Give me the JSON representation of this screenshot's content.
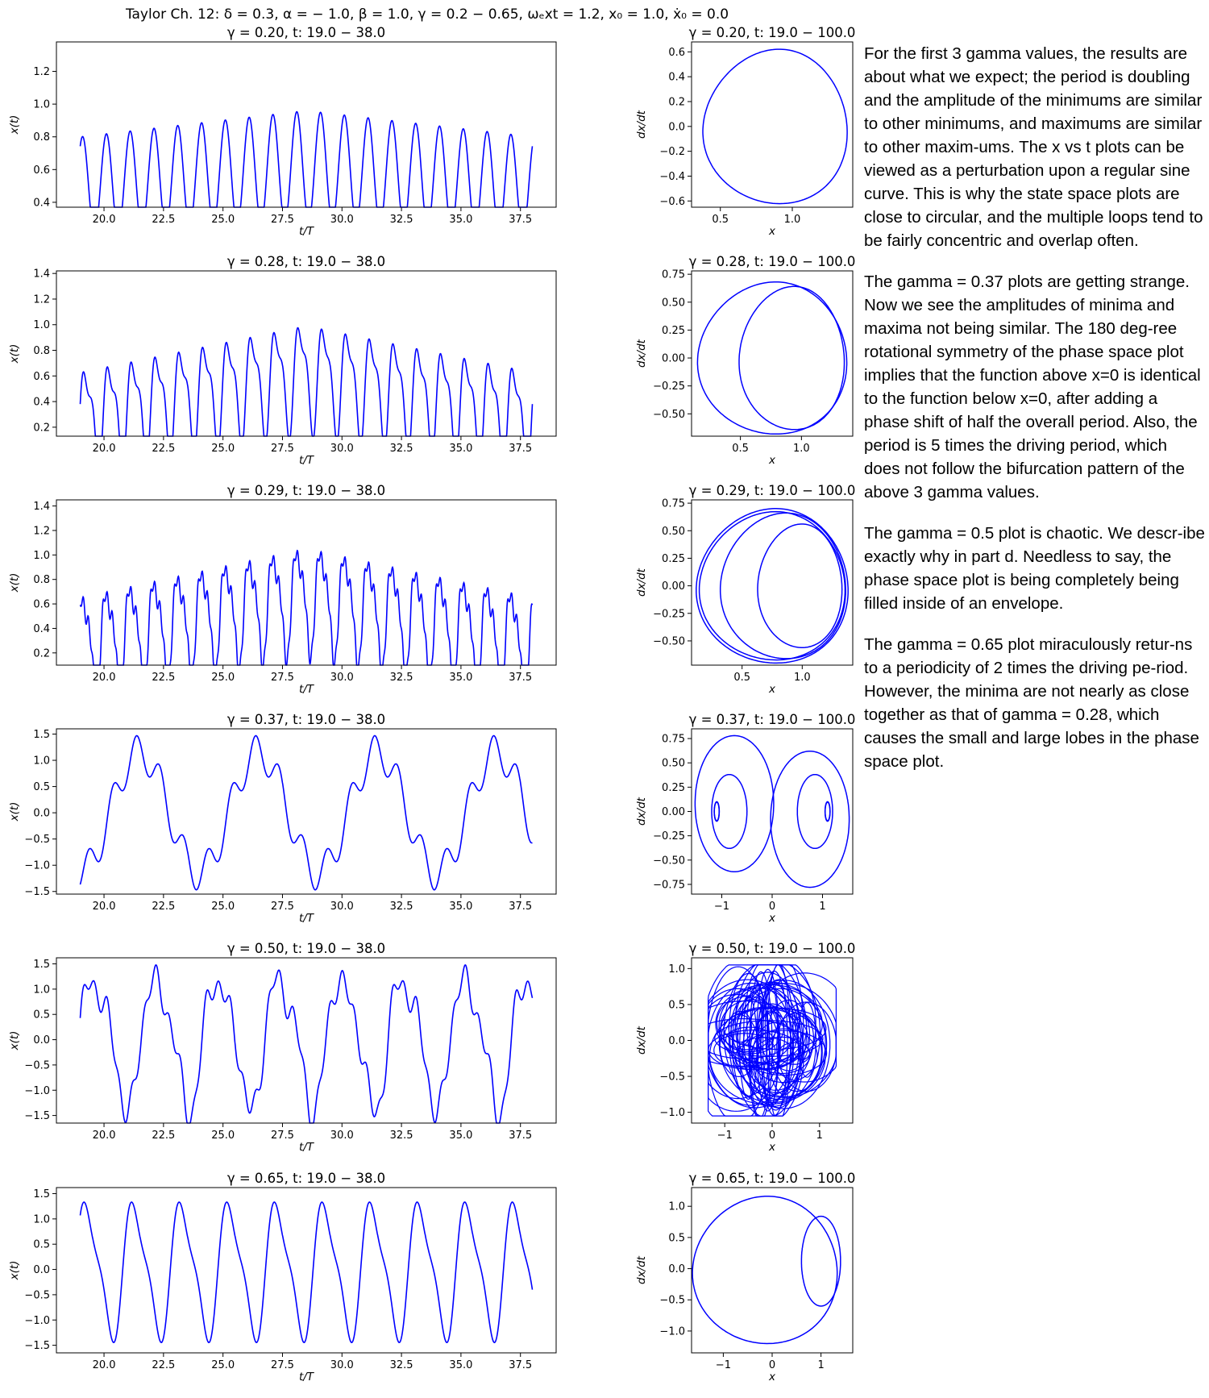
{
  "figure": {
    "suptitle": "Taylor Ch. 12:   δ = 0.3,  α = − 1.0,  β = 1.0,  γ = 0.2 − 0.65,  ωₑxt = 1.2,   x₀ = 1.0,  ẋ₀ = 0.0"
  },
  "colors": {
    "line": "#0000ff",
    "axes": "#000000",
    "background": "#ffffff"
  },
  "chart_data": [
    {
      "type": "line",
      "gamma": 0.2,
      "title": "γ = 0.20, t: 19.0 − 38.0",
      "xlabel": "t/T",
      "ylabel": "x(t)",
      "xlim": [
        18.0,
        39.0
      ],
      "ylim": [
        0.37,
        1.38
      ],
      "xticks": [
        20.0,
        22.5,
        25.0,
        27.5,
        30.0,
        32.5,
        35.0,
        37.5
      ],
      "xtick_labels": [
        "20.0",
        "22.5",
        "25.0",
        "27.5",
        "30.0",
        "32.5",
        "35.0",
        "37.5"
      ],
      "yticks": [
        0.4,
        0.6,
        0.8,
        1.0,
        1.2
      ],
      "ytick_labels": [
        "0.4",
        "0.6",
        "0.8",
        "1.0",
        "1.2"
      ],
      "series": [
        {
          "x_start": 19.0,
          "x_end": 38.0,
          "wave_period": 1.0,
          "phase": 0.15,
          "base": [
            0.5,
            0.62,
            0.5
          ],
          "main_amplitude": [
            0.3,
            0.34,
            0.3
          ],
          "harmonic": 0.0,
          "extra": 0.0
        }
      ]
    },
    {
      "type": "line",
      "gamma": 0.28,
      "title": "γ = 0.28, t: 19.0 − 38.0",
      "xlabel": "t/T",
      "ylabel": "x(t)",
      "xlim": [
        18.0,
        39.0
      ],
      "ylim": [
        0.13,
        1.42
      ],
      "xticks": [
        20.0,
        22.5,
        25.0,
        27.5,
        30.0,
        32.5,
        35.0,
        37.5
      ],
      "xtick_labels": [
        "20.0",
        "22.5",
        "25.0",
        "27.5",
        "30.0",
        "32.5",
        "35.0",
        "37.5"
      ],
      "yticks": [
        0.2,
        0.4,
        0.6,
        0.8,
        1.0,
        1.2,
        1.4
      ],
      "ytick_labels": [
        "0.2",
        "0.4",
        "0.6",
        "0.8",
        "1.0",
        "1.2",
        "1.4"
      ],
      "series": [
        {
          "x_start": 19.0,
          "x_end": 38.0,
          "wave_period": 1.0,
          "phase": 0.0,
          "base": [
            0.28,
            0.62,
            0.28
          ],
          "main_amplitude": [
            0.35,
            0.38,
            0.35
          ],
          "harmonic": 0.14,
          "extra": 0.0
        }
      ]
    },
    {
      "type": "line",
      "gamma": 0.29,
      "title": "γ = 0.29, t: 19.0 − 38.0",
      "xlabel": "t/T",
      "ylabel": "x(t)",
      "xlim": [
        18.0,
        39.0
      ],
      "ylim": [
        0.1,
        1.45
      ],
      "xticks": [
        20.0,
        22.5,
        25.0,
        27.5,
        30.0,
        32.5,
        35.0,
        37.5
      ],
      "xtick_labels": [
        "20.0",
        "22.5",
        "25.0",
        "27.5",
        "30.0",
        "32.5",
        "35.0",
        "37.5"
      ],
      "yticks": [
        0.2,
        0.4,
        0.6,
        0.8,
        1.0,
        1.2,
        1.4
      ],
      "ytick_labels": [
        "0.2",
        "0.4",
        "0.6",
        "0.8",
        "1.0",
        "1.2",
        "1.4"
      ],
      "series": [
        {
          "x_start": 19.0,
          "x_end": 38.0,
          "wave_period": 1.0,
          "phase": 0.1,
          "base": [
            0.28,
            0.66,
            0.28
          ],
          "main_amplitude": [
            0.38,
            0.4,
            0.38
          ],
          "harmonic": 0.12,
          "extra": 0.06
        }
      ]
    },
    {
      "type": "line",
      "gamma": 0.37,
      "title": "γ = 0.37, t: 19.0 − 38.0",
      "xlabel": "t/T",
      "ylabel": "x(t)",
      "xlim": [
        18.0,
        39.0
      ],
      "ylim": [
        -1.55,
        1.6
      ],
      "xticks": [
        20.0,
        22.5,
        25.0,
        27.5,
        30.0,
        32.5,
        35.0,
        37.5
      ],
      "xtick_labels": [
        "20.0",
        "22.5",
        "25.0",
        "27.5",
        "30.0",
        "32.5",
        "35.0",
        "37.5"
      ],
      "yticks": [
        -1.5,
        -1.0,
        -0.5,
        0.0,
        0.5,
        1.0,
        1.5
      ],
      "ytick_labels": [
        "−1.5",
        "−1.0",
        "−0.5",
        "0.0",
        "0.5",
        "1.0",
        "1.5"
      ],
      "series": [
        {
          "x_start": 19.0,
          "x_end": 38.0,
          "wave_period": 5.0,
          "phase": 0.95,
          "base": [
            0.0,
            0.0,
            0.0
          ],
          "main_amplitude": [
            1.15,
            1.15,
            1.15
          ],
          "harmonic": 0.0,
          "extra": 0.3
        }
      ]
    },
    {
      "type": "line",
      "gamma": 0.5,
      "title": "γ = 0.50, t: 19.0 − 38.0",
      "xlabel": "t/T",
      "ylabel": "x(t)",
      "xlim": [
        18.0,
        39.0
      ],
      "ylim": [
        -1.65,
        1.62
      ],
      "xticks": [
        20.0,
        22.5,
        25.0,
        27.5,
        30.0,
        32.5,
        35.0,
        37.5
      ],
      "xtick_labels": [
        "20.0",
        "22.5",
        "25.0",
        "27.5",
        "30.0",
        "32.5",
        "35.0",
        "37.5"
      ],
      "yticks": [
        -1.5,
        -1.0,
        -0.5,
        0.0,
        0.5,
        1.0,
        1.5
      ],
      "ytick_labels": [
        "−1.5",
        "−1.0",
        "−0.5",
        "0.0",
        "0.5",
        "1.0",
        "1.5"
      ],
      "series": [
        {
          "x_start": 19.0,
          "x_end": 38.0,
          "wave_period": 2.6,
          "phase": 0.7,
          "base": [
            0.0,
            0.0,
            0.0
          ],
          "main_amplitude": [
            1.25,
            1.25,
            1.25
          ],
          "harmonic": 0.25,
          "extra": 0.2
        }
      ]
    },
    {
      "type": "line",
      "gamma": 0.65,
      "title": "γ = 0.65, t: 19.0 − 38.0",
      "xlabel": "t/T",
      "ylabel": "x(t)",
      "xlim": [
        18.0,
        39.0
      ],
      "ylim": [
        -1.65,
        1.62
      ],
      "xticks": [
        20.0,
        22.5,
        25.0,
        27.5,
        30.0,
        32.5,
        35.0,
        37.5
      ],
      "xtick_labels": [
        "20.0",
        "22.5",
        "25.0",
        "27.5",
        "30.0",
        "32.5",
        "35.0",
        "37.5"
      ],
      "yticks": [
        -1.5,
        -1.0,
        -0.5,
        0.0,
        0.5,
        1.0,
        1.5
      ],
      "ytick_labels": [
        "−1.5",
        "−1.0",
        "−0.5",
        "0.0",
        "0.5",
        "1.0",
        "1.5"
      ],
      "series": [
        {
          "x_start": 19.0,
          "x_end": 38.0,
          "wave_period": 2.0,
          "phase": 0.6,
          "base": [
            0.0,
            0.0,
            0.0
          ],
          "main_amplitude": [
            1.25,
            1.25,
            1.25
          ],
          "harmonic": 0.3,
          "extra": 0.0
        }
      ]
    },
    {
      "type": "line",
      "gamma": 0.2,
      "title": "γ = 0.20, t: 19.0 − 100.0",
      "xlabel": "x",
      "ylabel": "dx/dt",
      "xlim": [
        0.3,
        1.42
      ],
      "ylim": [
        -0.65,
        0.68
      ],
      "xticks": [
        0.5,
        1.0
      ],
      "xtick_labels": [
        "0.5",
        "1.0"
      ],
      "yticks": [
        -0.6,
        -0.4,
        -0.2,
        0.0,
        0.2,
        0.4,
        0.6
      ],
      "ytick_labels": [
        "−0.6",
        "−0.4",
        "−0.2",
        "0.0",
        "0.2",
        "0.4",
        "0.6"
      ],
      "loops": [
        {
          "cx": 0.88,
          "cy": 0.0,
          "rx": 0.5,
          "ry": 0.62,
          "skew": 0.25,
          "turns": 1
        }
      ]
    },
    {
      "type": "line",
      "gamma": 0.28,
      "title": "γ = 0.28, t: 19.0 − 100.0",
      "xlabel": "x",
      "ylabel": "dx/dt",
      "xlim": [
        0.1,
        1.42
      ],
      "ylim": [
        -0.7,
        0.78
      ],
      "xticks": [
        0.5,
        1.0
      ],
      "xtick_labels": [
        "0.5",
        "1.0"
      ],
      "yticks": [
        -0.5,
        -0.25,
        0.0,
        0.25,
        0.5,
        0.75
      ],
      "ytick_labels": [
        "−0.50",
        "−0.25",
        "0.00",
        "0.25",
        "0.50",
        "0.75"
      ],
      "loops": [
        {
          "cx": 0.76,
          "cy": 0.0,
          "rx": 0.61,
          "ry": 0.68,
          "skew": 0.2,
          "turns": 1
        },
        {
          "cx": 0.92,
          "cy": 0.0,
          "rx": 0.43,
          "ry": 0.64,
          "skew": 0.2,
          "turns": 1
        }
      ]
    },
    {
      "type": "line",
      "gamma": 0.29,
      "title": "γ = 0.29, t: 19.0 − 100.0",
      "xlabel": "x",
      "ylabel": "dx/dt",
      "xlim": [
        0.08,
        1.42
      ],
      "ylim": [
        -0.72,
        0.78
      ],
      "xticks": [
        0.5,
        1.0
      ],
      "xtick_labels": [
        "0.5",
        "1.0"
      ],
      "yticks": [
        -0.5,
        -0.25,
        0.0,
        0.25,
        0.5,
        0.75
      ],
      "ytick_labels": [
        "−0.50",
        "−0.25",
        "0.00",
        "0.25",
        "0.50",
        "0.75"
      ],
      "loops": [
        {
          "cx": 0.75,
          "cy": 0.0,
          "rx": 0.63,
          "ry": 0.7,
          "skew": 0.2,
          "turns": 2
        },
        {
          "cx": 0.84,
          "cy": 0.0,
          "rx": 0.52,
          "ry": 0.66,
          "skew": 0.2,
          "turns": 1
        },
        {
          "cx": 0.98,
          "cy": 0.0,
          "rx": 0.35,
          "ry": 0.56,
          "skew": 0.2,
          "turns": 1
        }
      ]
    },
    {
      "type": "line",
      "gamma": 0.37,
      "title": "γ = 0.37, t: 19.0 − 100.0",
      "xlabel": "x",
      "ylabel": "dx/dt",
      "xlim": [
        -1.6,
        1.6
      ],
      "ylim": [
        -0.85,
        0.85
      ],
      "xticks": [
        -1.0,
        0.0,
        1.0
      ],
      "xtick_labels": [
        "−1",
        "0",
        "1"
      ],
      "yticks": [
        -0.75,
        -0.5,
        -0.25,
        0.0,
        0.25,
        0.5,
        0.75
      ],
      "ytick_labels": [
        "−0.75",
        "−0.50",
        "−0.25",
        "0.00",
        "0.25",
        "0.50",
        "0.75"
      ],
      "loops": [
        {
          "cx": -0.75,
          "cy": 0.08,
          "rx": 0.78,
          "ry": 0.7,
          "skew": 0.0,
          "turns": 1
        },
        {
          "cx": 0.75,
          "cy": -0.08,
          "rx": 0.78,
          "ry": 0.7,
          "skew": 0.0,
          "turns": 1
        },
        {
          "cx": -0.85,
          "cy": 0.0,
          "rx": 0.35,
          "ry": 0.38,
          "skew": 0.0,
          "turns": 1
        },
        {
          "cx": 0.85,
          "cy": 0.0,
          "rx": 0.35,
          "ry": 0.38,
          "skew": 0.0,
          "turns": 1
        },
        {
          "cx": -1.1,
          "cy": 0.0,
          "rx": 0.05,
          "ry": 0.1,
          "skew": 0.0,
          "turns": 2
        },
        {
          "cx": 1.1,
          "cy": 0.0,
          "rx": 0.05,
          "ry": 0.1,
          "skew": 0.0,
          "turns": 2
        }
      ]
    },
    {
      "type": "line",
      "gamma": 0.5,
      "title": "γ = 0.50, t: 19.0 − 100.0",
      "xlabel": "x",
      "ylabel": "dx/dt",
      "xlim": [
        -1.7,
        1.7
      ],
      "ylim": [
        -1.15,
        1.15
      ],
      "xticks": [
        -1.0,
        0.0,
        1.0
      ],
      "xtick_labels": [
        "−1",
        "0",
        "1"
      ],
      "yticks": [
        -1.0,
        -0.5,
        0.0,
        0.5,
        1.0
      ],
      "ytick_labels": [
        "−1.0",
        "−0.5",
        "0.0",
        "0.5",
        "1.0"
      ],
      "chaotic": {
        "count": 60,
        "xrange": [
          -1.35,
          1.35
        ],
        "yrange": [
          -1.05,
          1.05
        ]
      }
    },
    {
      "type": "line",
      "gamma": 0.65,
      "title": "γ = 0.65, t: 19.0 − 100.0",
      "xlabel": "x",
      "ylabel": "dx/dt",
      "xlim": [
        -1.65,
        1.65
      ],
      "ylim": [
        -1.35,
        1.3
      ],
      "xticks": [
        -1.0,
        0.0,
        1.0
      ],
      "xtick_labels": [
        "−1",
        "0",
        "1"
      ],
      "yticks": [
        -1.0,
        -0.5,
        0.0,
        0.5,
        1.0
      ],
      "ytick_labels": [
        "−1.0",
        "−0.5",
        "0.0",
        "0.5",
        "1.0"
      ],
      "loops": [
        {
          "cx": -0.15,
          "cy": -0.02,
          "rx": 1.48,
          "ry": 1.18,
          "skew": 0.15,
          "turns": 1
        },
        {
          "cx": 1.0,
          "cy": 0.12,
          "rx": 0.4,
          "ry": 0.72,
          "skew": 0.0,
          "turns": 1
        }
      ]
    }
  ],
  "commentary": {
    "p1": "For the first 3 gamma values, the results are about what we expect; the period is doubling and the amplitude of the minimums are similar to other minimums, and maximums are similar to other maxim-ums. The x vs t plots can be viewed as a perturbation upon a regular sine curve. This is why the state space plots are close to circular, and the multiple loops tend to be fairly concentric and overlap often.",
    "p2": "The gamma = 0.37 plots are getting strange. Now we see the amplitudes of minima and maxima not being similar. The 180 deg-ree rotational symmetry of the phase space plot implies that the function above x=0 is identical to the function below x=0, after adding a phase shift of half the overall period.  Also, the period is 5 times the driving period, which does not follow the bifurcation pattern of the above 3 gamma values.",
    "p3": "The gamma = 0.5 plot is chaotic. We descr-ibe exactly why in part d. Needless to say, the phase space plot is being completely being filled inside of an envelope.",
    "p4": "The gamma = 0.65 plot miraculously retur-ns to a periodicity of 2 times the driving pe-riod. However, the minima are not nearly as close together as that of gamma = 0.28, which causes the small and large lobes in the phase space plot."
  }
}
